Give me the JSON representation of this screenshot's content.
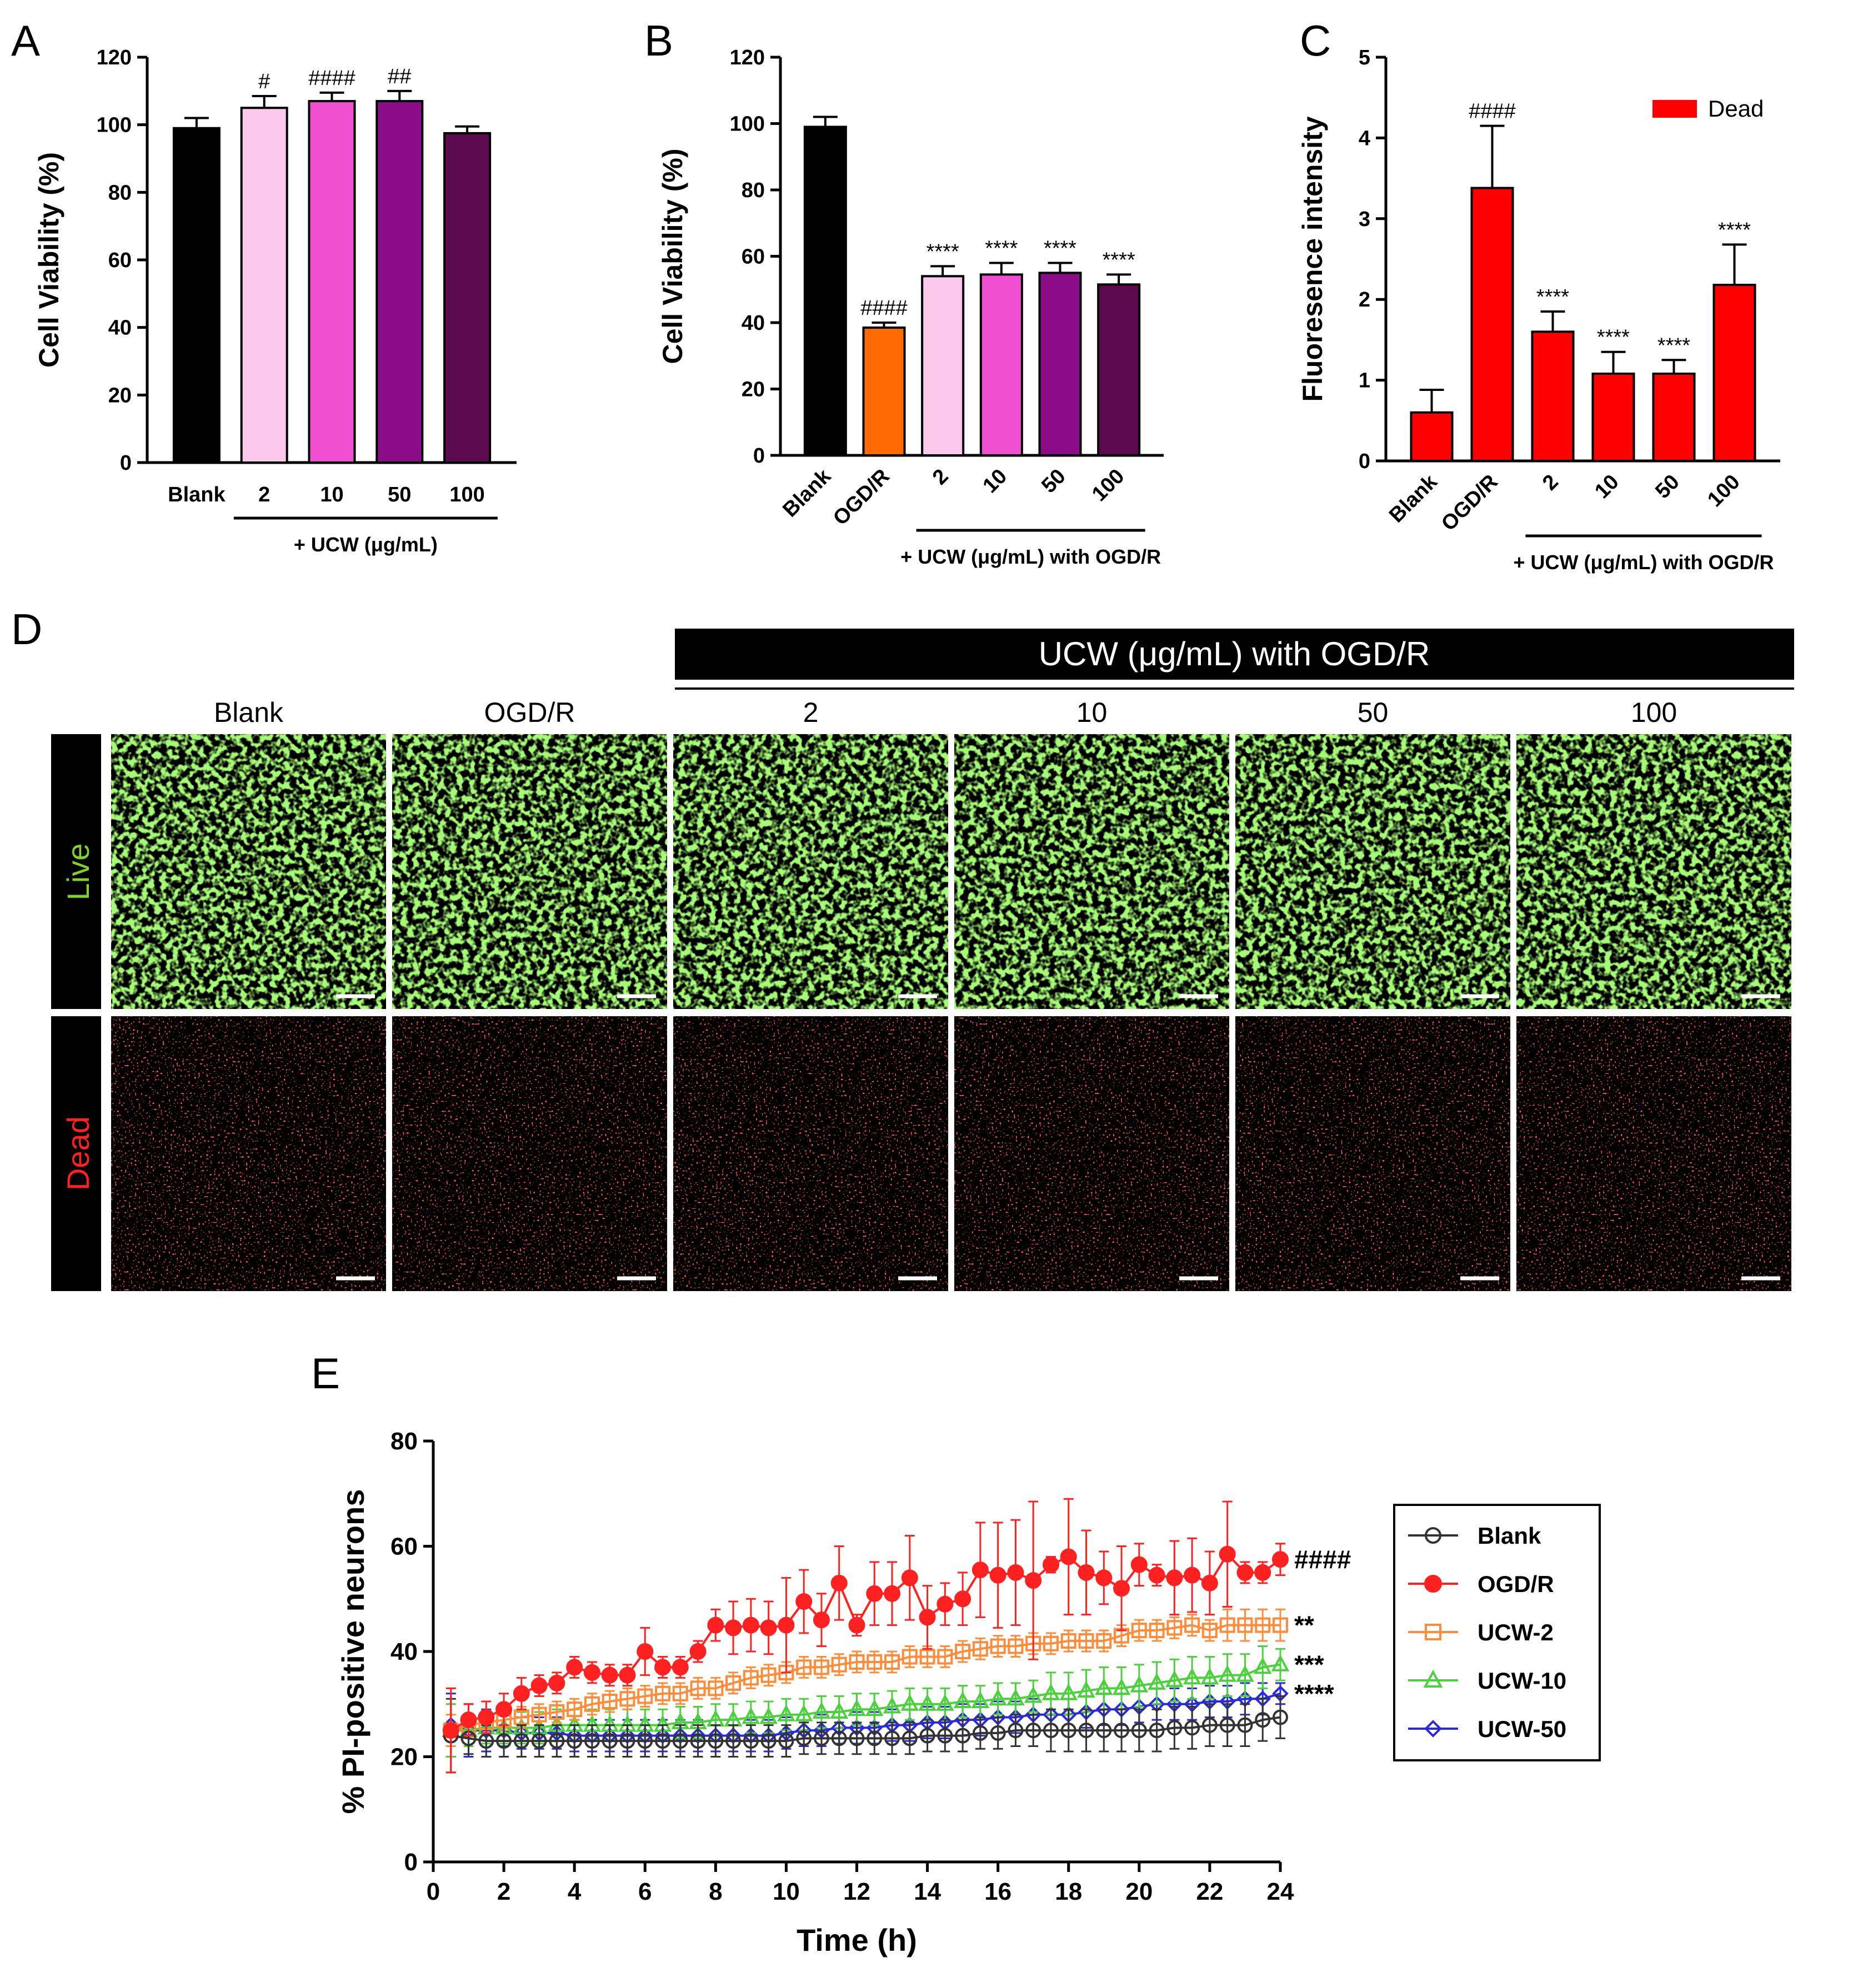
{
  "figure": {
    "micro": {
      "panel_letter": "D",
      "banner": "UCW (μg/mL) with OGD/R",
      "columns": [
        "Blank",
        "OGD/R",
        "2",
        "10",
        "50",
        "100"
      ],
      "rows": [
        {
          "label": "Live",
          "color": "#7fd12c"
        },
        {
          "label": "Dead",
          "color": "#ff2020"
        }
      ]
    }
  },
  "chart_data": [
    {
      "panel": "A",
      "type": "bar",
      "categories": [
        "Blank",
        "2",
        "10",
        "50",
        "100"
      ],
      "values": [
        99,
        105,
        107,
        107,
        97.5
      ],
      "errors": [
        3,
        3.5,
        2.5,
        3,
        2
      ],
      "colors": [
        "#000000",
        "#f9c8ea",
        "#f04fd2",
        "#8b0c87",
        "#5c0950"
      ],
      "significance": [
        "",
        "#",
        "####",
        "##",
        ""
      ],
      "ylabel": "Cell Viability (%)",
      "ylim": [
        0,
        120
      ],
      "yticks": [
        0,
        20,
        40,
        60,
        80,
        100,
        120
      ],
      "group_label": "+ UCW (μg/mL)",
      "group_span": [
        1,
        4
      ],
      "xtick_rotation": 0
    },
    {
      "panel": "B",
      "type": "bar",
      "categories": [
        "Blank",
        "OGD/R",
        "2",
        "10",
        "50",
        "100"
      ],
      "values": [
        99,
        38.5,
        54,
        54.5,
        55,
        51.5
      ],
      "errors": [
        3,
        1.5,
        3,
        3.5,
        3,
        3
      ],
      "colors": [
        "#000000",
        "#ff6a00",
        "#f9c8ea",
        "#f04fd2",
        "#8b0c87",
        "#5c0950"
      ],
      "significance": [
        "",
        "####",
        "****",
        "****",
        "****",
        "****"
      ],
      "ylabel": "Cell Viability (%)",
      "ylim": [
        0,
        120
      ],
      "yticks": [
        0,
        20,
        40,
        60,
        80,
        100,
        120
      ],
      "group_label": "+ UCW (μg/mL) with OGD/R",
      "group_span": [
        2,
        5
      ],
      "xtick_rotation": -45
    },
    {
      "panel": "C",
      "type": "bar",
      "categories": [
        "Blank",
        "OGD/R",
        "2",
        "10",
        "50",
        "100"
      ],
      "values": [
        0.6,
        3.38,
        1.6,
        1.08,
        1.08,
        2.18
      ],
      "errors": [
        0.28,
        0.77,
        0.25,
        0.27,
        0.17,
        0.5
      ],
      "colors": [
        "#ff0000",
        "#ff0000",
        "#ff0000",
        "#ff0000",
        "#ff0000",
        "#ff0000"
      ],
      "significance": [
        "",
        "####",
        "****",
        "****",
        "****",
        "****"
      ],
      "ylabel": "Fluoresence intensity",
      "ylim": [
        0,
        5
      ],
      "yticks": [
        0,
        1,
        2,
        3,
        4,
        5
      ],
      "legend": [
        "Dead"
      ],
      "group_label": "+ UCW (μg/mL) with OGD/R",
      "group_span": [
        2,
        5
      ],
      "xtick_rotation": -45
    },
    {
      "panel": "E",
      "type": "line",
      "xlabel": "Time (h)",
      "ylabel": "% PI-positive neurons",
      "xlim": [
        0,
        24
      ],
      "ylim": [
        0,
        80
      ],
      "xticks": [
        0,
        2,
        4,
        6,
        8,
        10,
        12,
        14,
        16,
        18,
        20,
        22,
        24
      ],
      "yticks": [
        0,
        20,
        40,
        60,
        80
      ],
      "x": [
        0.5,
        1,
        1.5,
        2,
        2.5,
        3,
        3.5,
        4,
        4.5,
        5,
        5.5,
        6,
        6.5,
        7,
        7.5,
        8,
        8.5,
        9,
        9.5,
        10,
        10.5,
        11,
        11.5,
        12,
        12.5,
        13,
        13.5,
        14,
        14.5,
        15,
        15.5,
        16,
        16.5,
        17,
        17.5,
        18,
        18.5,
        19,
        19.5,
        20,
        20.5,
        21,
        21.5,
        22,
        22.5,
        23,
        23.5,
        24
      ],
      "series": [
        {
          "name": "Blank",
          "color": "#333333",
          "marker": "circle-open",
          "significance": "",
          "values": [
            24,
            23.5,
            23,
            23,
            23,
            23,
            23,
            23,
            23,
            23,
            23,
            23,
            23,
            23,
            23,
            23,
            23,
            23,
            23,
            23,
            23.5,
            23.5,
            23.5,
            23.5,
            23.5,
            23.5,
            23.5,
            24,
            24,
            24,
            24.5,
            24.5,
            25,
            25,
            25,
            25,
            25,
            25,
            25,
            25,
            25,
            25.5,
            25.5,
            26,
            26,
            26,
            27,
            27.5
          ],
          "errors": [
            7,
            3,
            3,
            3,
            3,
            3,
            3,
            3,
            3,
            3,
            3,
            3,
            3,
            3,
            3,
            3,
            3,
            3,
            3,
            3,
            3,
            3,
            3,
            3,
            3,
            3,
            3,
            3,
            3,
            3,
            3,
            3,
            3,
            3,
            4,
            4,
            4,
            4,
            4,
            4,
            4,
            4,
            4,
            4,
            4,
            4,
            4,
            4
          ]
        },
        {
          "name": "OGD/R",
          "color": "#ff2020",
          "marker": "circle-filled",
          "significance": "####",
          "values": [
            25,
            27,
            27.5,
            29,
            32,
            33.5,
            34,
            37,
            36,
            35.5,
            35.5,
            40,
            37,
            37,
            40,
            45,
            44.5,
            45,
            44.5,
            45,
            49.5,
            46,
            53,
            45,
            51,
            51,
            54,
            46.5,
            49,
            50,
            55.5,
            54.5,
            55,
            53.5,
            56.5,
            58,
            55,
            54,
            52,
            56.5,
            54.5,
            54,
            54.5,
            53,
            58.5,
            55,
            55,
            57.5
          ],
          "errors": [
            8,
            3,
            3,
            3,
            3,
            2,
            2,
            2,
            2,
            2,
            2,
            4.5,
            2,
            2,
            2,
            3,
            5,
            5,
            5,
            9,
            6,
            5,
            7,
            2,
            6,
            6,
            8,
            6,
            4,
            5,
            9,
            10,
            10,
            15,
            1.5,
            11,
            8,
            5,
            8,
            4,
            2,
            7,
            7,
            6,
            10,
            2,
            2,
            3
          ]
        },
        {
          "name": "UCW-2",
          "color": "#ff8c3a",
          "marker": "square-open",
          "significance": "**",
          "values": [
            25,
            26,
            26.5,
            27,
            27.5,
            28,
            28.5,
            29,
            30,
            30.5,
            31,
            31.5,
            32,
            32,
            33,
            33,
            34,
            35,
            35.5,
            36,
            37,
            37,
            37.5,
            38,
            38,
            38,
            39,
            39,
            39,
            40,
            40.5,
            41,
            41,
            41.5,
            41.5,
            42,
            42,
            42,
            43,
            44,
            44,
            44.5,
            45,
            44,
            45,
            45,
            45,
            45
          ],
          "errors": [
            3,
            2,
            2,
            2,
            2,
            2,
            2,
            2,
            2,
            2,
            2,
            2,
            2,
            2,
            2,
            2,
            2,
            2,
            2,
            2,
            2,
            2,
            2,
            2,
            2,
            2,
            2,
            2,
            2,
            2,
            2,
            2,
            2,
            2,
            2,
            2,
            2,
            2,
            2,
            2,
            2,
            2,
            2,
            2,
            3,
            3,
            3,
            3
          ]
        },
        {
          "name": "UCW-10",
          "color": "#4cd13c",
          "marker": "triangle-open",
          "significance": "***",
          "values": [
            25,
            25,
            25.5,
            25.5,
            25.5,
            25.5,
            26,
            26,
            26,
            26,
            26,
            26,
            26,
            26.5,
            26.5,
            27,
            27,
            27.5,
            27.5,
            28,
            28,
            28.5,
            28.5,
            29,
            29,
            29.5,
            30,
            30,
            30,
            30.5,
            30.5,
            31,
            31,
            31.5,
            32,
            32,
            32.5,
            33,
            33,
            33.5,
            34,
            34.5,
            35,
            35,
            35.5,
            35.5,
            37,
            37.5
          ],
          "errors": [
            5,
            3,
            3,
            3,
            3,
            3,
            3,
            3,
            3,
            3,
            3,
            3,
            3,
            3,
            3,
            3,
            3,
            3,
            3,
            3,
            3,
            3,
            3,
            3,
            3,
            3,
            3,
            3,
            3,
            3,
            3,
            3,
            3,
            3,
            4,
            4,
            4,
            4,
            4,
            4,
            4,
            4,
            4,
            4,
            4,
            4,
            4,
            3
          ]
        },
        {
          "name": "UCW-50",
          "color": "#2a2ad8",
          "marker": "diamond-open",
          "significance": "****",
          "values": [
            26,
            25,
            25,
            25,
            24.5,
            24.5,
            24.5,
            24,
            24,
            24,
            24,
            24,
            24,
            24,
            24,
            24,
            24,
            24,
            24,
            24.5,
            25,
            25,
            25.5,
            25.5,
            25.5,
            26,
            26,
            26.5,
            26.5,
            27,
            27,
            27.5,
            27.5,
            28,
            28,
            28,
            28.5,
            29,
            29,
            29.5,
            30,
            30,
            30,
            30.5,
            30.5,
            31,
            31,
            32
          ],
          "errors": [
            6,
            5,
            4,
            3,
            3,
            3,
            3,
            3,
            3,
            3,
            3,
            3,
            3,
            3,
            3,
            3,
            3,
            3,
            3,
            3,
            3,
            3,
            3,
            3,
            3,
            3,
            3,
            3,
            3,
            3,
            3,
            3,
            3,
            3,
            3,
            3,
            3,
            3,
            3,
            3,
            3,
            3,
            3,
            3,
            3,
            3,
            3,
            2
          ]
        }
      ]
    }
  ]
}
